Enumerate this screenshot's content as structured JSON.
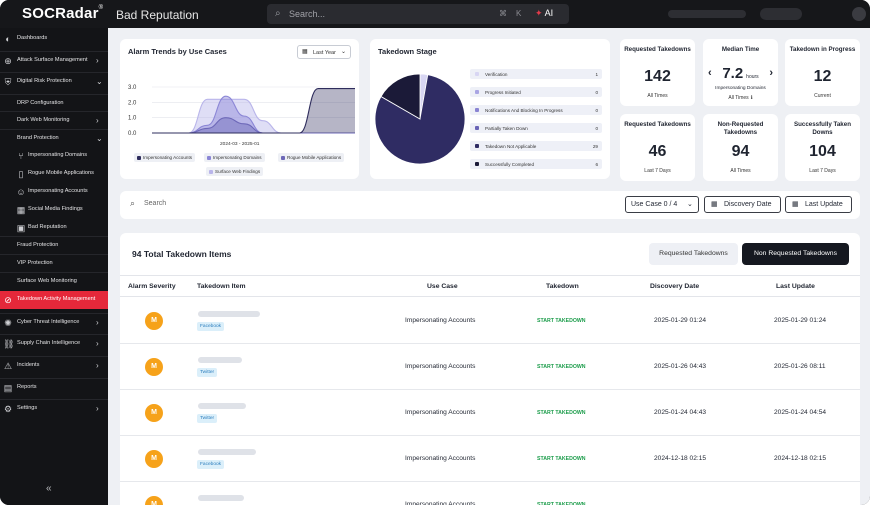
{
  "app": {
    "logo": "SOCRadar",
    "logo_mark": "®",
    "page_title": "Bad Reputation"
  },
  "global_search": {
    "placeholder": "Search...",
    "shortcut_1": "⌘",
    "shortcut_2": "K",
    "ai_label": "AI"
  },
  "sidebar": {
    "items": [
      {
        "label": "Dashboards",
        "icon": "dashboard-icon",
        "level": 0,
        "chevron": "",
        "active": false,
        "top_border": false
      },
      {
        "label": "Attack Surface Management",
        "icon": "globe-icon",
        "level": 0,
        "chevron": "›",
        "active": false,
        "top_border": true
      },
      {
        "label": "Digital Risk Protection",
        "icon": "shield-icon",
        "level": 0,
        "chevron": "⌄",
        "active": false,
        "top_border": true
      },
      {
        "label": "DRP Configuration",
        "icon": "",
        "level": 1,
        "chevron": "",
        "active": false,
        "top_border": true
      },
      {
        "label": "Dark Web Monitoring",
        "icon": "",
        "level": 1,
        "chevron": "›",
        "active": false,
        "top_border": true
      },
      {
        "label": "Brand Protection",
        "icon": "",
        "level": 1,
        "chevron": "⌄",
        "active": false,
        "top_border": true
      },
      {
        "label": "Impersonating Domains",
        "icon": "fork-icon",
        "level": 2,
        "chevron": "",
        "active": false,
        "top_border": false
      },
      {
        "label": "Rogue Mobile Applications",
        "icon": "mobile-icon",
        "level": 2,
        "chevron": "",
        "active": false,
        "top_border": false
      },
      {
        "label": "Impersonating Accounts",
        "icon": "user-icon",
        "level": 2,
        "chevron": "",
        "active": false,
        "top_border": false
      },
      {
        "label": "Social Media Findings",
        "icon": "grid-icon",
        "level": 2,
        "chevron": "",
        "active": false,
        "top_border": false
      },
      {
        "label": "Bad Reputation",
        "icon": "image-icon",
        "level": 2,
        "chevron": "",
        "active": false,
        "top_border": false
      },
      {
        "label": "Fraud Protection",
        "icon": "",
        "level": 1,
        "chevron": "",
        "active": false,
        "top_border": true
      },
      {
        "label": "VIP Protection",
        "icon": "",
        "level": 1,
        "chevron": "",
        "active": false,
        "top_border": true
      },
      {
        "label": "Surface Web Monitoring",
        "icon": "",
        "level": 1,
        "chevron": "",
        "active": false,
        "top_border": true
      },
      {
        "label": "Takedown Activity Management",
        "icon": "takedown-icon",
        "level": 1,
        "chevron": "",
        "active": true,
        "top_border": false
      },
      {
        "label": "Cyber Threat Intelligence",
        "icon": "brain-icon",
        "level": 0,
        "chevron": "›",
        "active": false,
        "top_border": true
      },
      {
        "label": "Supply Chain Intelligence",
        "icon": "chain-icon",
        "level": 0,
        "chevron": "›",
        "active": false,
        "top_border": true
      },
      {
        "label": "Incidents",
        "icon": "alert-icon",
        "level": 0,
        "chevron": "›",
        "active": false,
        "top_border": true
      },
      {
        "label": "Reports",
        "icon": "report-icon",
        "level": 0,
        "chevron": "",
        "active": false,
        "top_border": true
      },
      {
        "label": "Settings",
        "icon": "gear-icon",
        "level": 0,
        "chevron": "›",
        "active": false,
        "top_border": true
      }
    ],
    "collapse_label": "«"
  },
  "alarm_trends": {
    "title": "Alarm Trends by Use Cases",
    "range_label": "Last Year",
    "legend": [
      {
        "label": "Impersonating Accounts",
        "color": "#2e2c5c"
      },
      {
        "label": "Impersonating Domains",
        "color": "#8b86d6"
      },
      {
        "label": "Rogue Mobile Applications",
        "color": "#6d68b8"
      },
      {
        "label": "Surface Web Findings",
        "color": "#b9b5ea"
      }
    ]
  },
  "chart_data": {
    "type": "area",
    "title": "Alarm Trends by Use Cases",
    "x_range_label": "2024-03 - 2025-01",
    "yticks": [
      "3.0",
      "2.0",
      "1.0",
      "0.0"
    ],
    "ylim": [
      0,
      3
    ],
    "grid": true,
    "legend_placement": "bottom",
    "x": [
      0,
      1,
      2,
      3,
      4,
      5,
      6,
      7,
      8,
      9,
      10,
      11
    ],
    "series": [
      {
        "name": "Impersonating Accounts",
        "color": "#2e2c5c",
        "values": [
          0,
          0,
          0,
          0,
          0,
          0,
          0,
          0,
          0,
          2.9,
          2.9,
          2.9
        ]
      },
      {
        "name": "Impersonating Domains",
        "color": "#8b86d6",
        "values": [
          0,
          0,
          0,
          0.5,
          2.4,
          1.1,
          0,
          0,
          0,
          0,
          0,
          0
        ]
      },
      {
        "name": "Rogue Mobile Applications",
        "color": "#6d68b8",
        "values": [
          0,
          0,
          0,
          0.3,
          1.0,
          0.6,
          0,
          0,
          0,
          0,
          0,
          0
        ]
      },
      {
        "name": "Surface Web Findings",
        "color": "#b9b5ea",
        "values": [
          0,
          0,
          0,
          2.2,
          2.2,
          2.2,
          0.8,
          0,
          0,
          0,
          0,
          0
        ]
      }
    ]
  },
  "takedown_stage": {
    "title": "Takedown Stage",
    "rows": [
      {
        "label": "Verification",
        "value": "1",
        "color": "#d8d6f3"
      },
      {
        "label": "Progress Initiated",
        "value": "0",
        "color": "#a9a5e3"
      },
      {
        "label": "Notifications And Blocking In Progress",
        "value": "0",
        "color": "#8a84d2"
      },
      {
        "label": "Partially Taken Down",
        "value": "0",
        "color": "#6a64b6"
      },
      {
        "label": "Takedown Not Applicable",
        "value": "29",
        "color": "#2f2c63"
      },
      {
        "label": "Successfully Completed",
        "value": "6",
        "color": "#1b1a38"
      }
    ],
    "pie": [
      {
        "name": "Verification",
        "value": 1,
        "color": "#d8d6f3"
      },
      {
        "name": "Takedown Not Applicable",
        "value": 29,
        "color": "#2f2c63"
      },
      {
        "name": "Successfully Completed",
        "value": 6,
        "color": "#1b1a38"
      }
    ]
  },
  "stats": [
    {
      "title": "Requested Takedowns",
      "value": "142",
      "sub": "All Times"
    },
    {
      "title": "Median Time",
      "value": "7.2",
      "unit": "hours",
      "label": "Impersonating Domains",
      "sub": "All Times",
      "info": "ℹ",
      "prev": "‹",
      "next": "›"
    },
    {
      "title": "Takedown in Progress",
      "value": "12",
      "sub": "Current"
    },
    {
      "title": "Requested Takedowns",
      "value": "46",
      "sub": "Last 7 Days"
    },
    {
      "title": "Non-Requested Takedowns",
      "value": "94",
      "sub": "All Times"
    },
    {
      "title": "Successfully Taken Downs",
      "value": "104",
      "sub": "Last 7 Days"
    }
  ],
  "filter_bar": {
    "search_placeholder": "Search",
    "use_case_label": "Use Case 0 / 4",
    "discovery_date_label": "Discovery Date",
    "last_update_label": "Last Update"
  },
  "table": {
    "title": "94 Total Takedown Items",
    "toggle_requested": "Requested Takedowns",
    "toggle_non_requested": "Non Requested Takedowns",
    "headers": [
      "Alarm Severity",
      "Takedown Item",
      "Use Case",
      "Takedown",
      "Discovery Date",
      "Last Update"
    ],
    "rows": [
      {
        "severity": "M",
        "platform": "Facebook",
        "use_case": "Impersonating Accounts",
        "takedown": "START TAKEDOWN",
        "discovery": "2025-01-29 01:24",
        "updated": "2025-01-29 01:24"
      },
      {
        "severity": "M",
        "platform": "Twitter",
        "use_case": "Impersonating Accounts",
        "takedown": "START TAKEDOWN",
        "discovery": "2025-01-26 04:43",
        "updated": "2025-01-26 08:11"
      },
      {
        "severity": "M",
        "platform": "Twitter",
        "use_case": "Impersonating Accounts",
        "takedown": "START TAKEDOWN",
        "discovery": "2025-01-24 04:43",
        "updated": "2025-01-24 04:54"
      },
      {
        "severity": "M",
        "platform": "Facebook",
        "use_case": "Impersonating Accounts",
        "takedown": "START TAKEDOWN",
        "discovery": "2024-12-18 02:15",
        "updated": "2024-12-18 02:15"
      },
      {
        "severity": "M",
        "platform": "",
        "use_case": "Impersonating Accounts",
        "takedown": "START TAKEDOWN",
        "discovery": "",
        "updated": ""
      }
    ]
  }
}
